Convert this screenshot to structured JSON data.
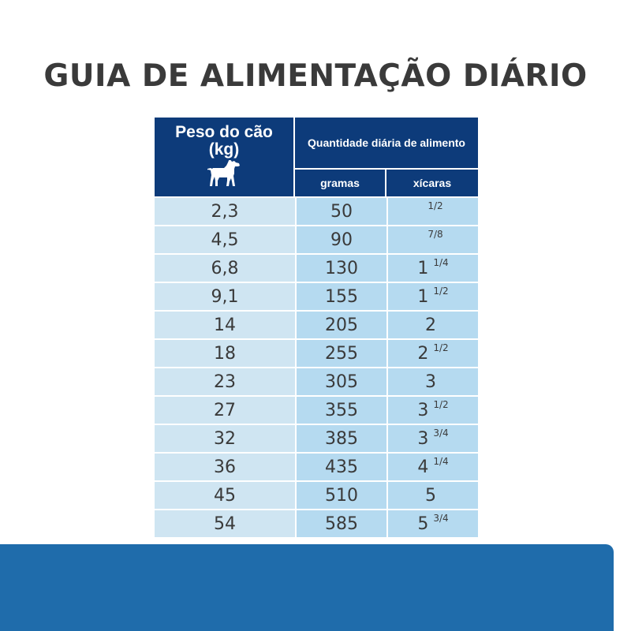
{
  "title": "GUIA DE ALIMENTAÇÃO DIÁRIO",
  "header": {
    "weight_line1": "Peso do cão",
    "weight_line2": "(kg)",
    "icon": "dog-icon",
    "daily_amount": "Quantidade diária de alimento",
    "grams": "gramas",
    "cups": "xícaras"
  },
  "rows": [
    {
      "weight": "2,3",
      "grams": "50",
      "cups_whole": "",
      "cups_frac": "1/2"
    },
    {
      "weight": "4,5",
      "grams": "90",
      "cups_whole": "",
      "cups_frac": "7/8"
    },
    {
      "weight": "6,8",
      "grams": "130",
      "cups_whole": "1",
      "cups_frac": "1/4"
    },
    {
      "weight": "9,1",
      "grams": "155",
      "cups_whole": "1",
      "cups_frac": "1/2"
    },
    {
      "weight": "14",
      "grams": "205",
      "cups_whole": "2",
      "cups_frac": ""
    },
    {
      "weight": "18",
      "grams": "255",
      "cups_whole": "2",
      "cups_frac": "1/2"
    },
    {
      "weight": "23",
      "grams": "305",
      "cups_whole": "3",
      "cups_frac": ""
    },
    {
      "weight": "27",
      "grams": "355",
      "cups_whole": "3",
      "cups_frac": "1/2"
    },
    {
      "weight": "32",
      "grams": "385",
      "cups_whole": "3",
      "cups_frac": "3/4"
    },
    {
      "weight": "36",
      "grams": "435",
      "cups_whole": "4",
      "cups_frac": "1/4"
    },
    {
      "weight": "45",
      "grams": "510",
      "cups_whole": "5",
      "cups_frac": ""
    },
    {
      "weight": "54",
      "grams": "585",
      "cups_whole": "5",
      "cups_frac": "3/4"
    }
  ],
  "colors": {
    "header_bg": "#0d3b7a",
    "weight_col_bg": "#cfe5f2",
    "qty_col_bg": "#b5daf0",
    "band": "#1f6cab",
    "text": "#3a3a3a"
  }
}
